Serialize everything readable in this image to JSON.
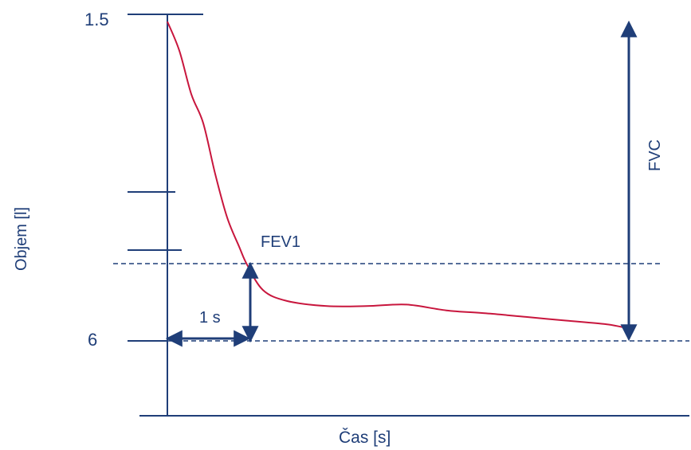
{
  "chart_data": {
    "type": "line",
    "xlabel": "Čas [s]",
    "ylabel": "Objem [l]",
    "y_tick_labels": [
      "1.5",
      "6"
    ],
    "series": [
      {
        "x": [
          0,
          0.15,
          0.3,
          0.45,
          0.6,
          0.75,
          0.9,
          1.0,
          1.2,
          1.5,
          2.0,
          2.5,
          3.0,
          3.5,
          4.0,
          4.5,
          5.0,
          5.5,
          5.75
        ],
        "y": [
          1.6,
          2.0,
          2.6,
          3.0,
          3.7,
          4.3,
          4.7,
          4.95,
          5.3,
          5.45,
          5.52,
          5.52,
          5.5,
          5.58,
          5.62,
          5.67,
          5.72,
          5.77,
          5.82
        ]
      }
    ],
    "annotations": {
      "fev1_label": "FEV1",
      "fvc_label": "FVC",
      "interval_label": "1 s"
    },
    "colors": {
      "axis": "#1f3e78",
      "curve": "#c8163d"
    }
  }
}
